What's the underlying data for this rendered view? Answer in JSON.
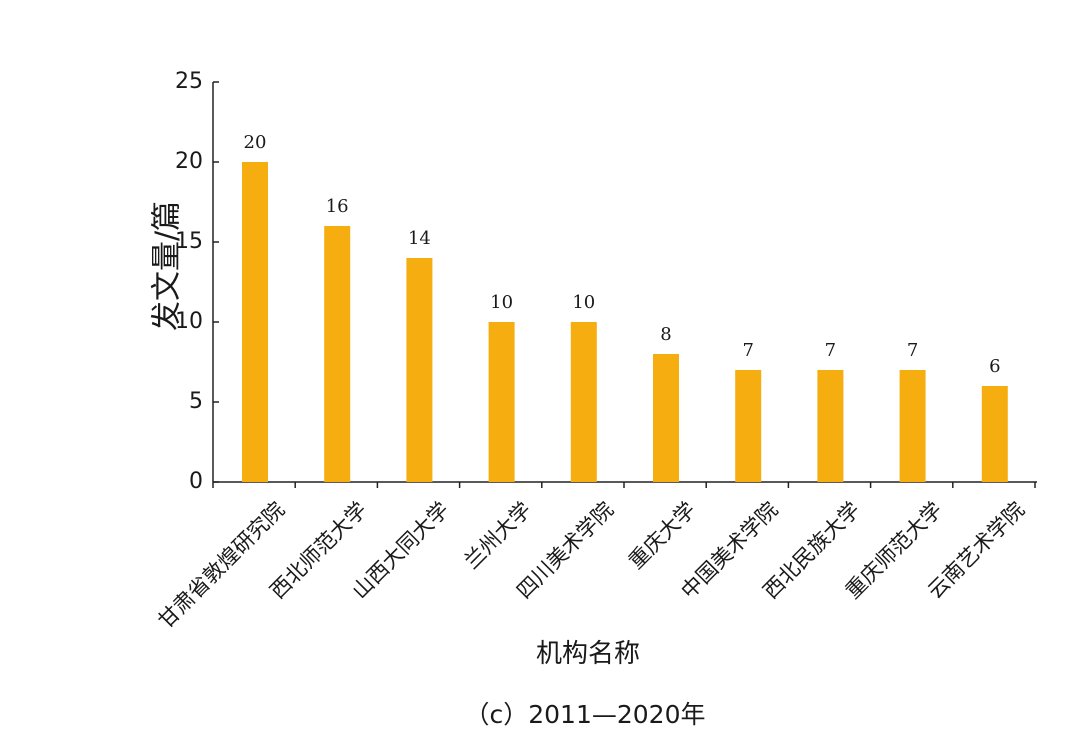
{
  "chart_data": {
    "type": "bar",
    "categories": [
      "甘肃省敦煌研究院",
      "西北师范大学",
      "山西大同大学",
      "兰州大学",
      "四川美术学院",
      "重庆大学",
      "中国美术学院",
      "西北民族大学",
      "重庆师范大学",
      "云南艺术学院"
    ],
    "values": [
      20,
      16,
      14,
      10,
      10,
      8,
      7,
      7,
      7,
      6
    ],
    "data_labels": [
      "20",
      "16",
      "14",
      "10",
      "10",
      "8",
      "7",
      "7",
      "7",
      "6"
    ],
    "xlabel": "机构名称",
    "ylabel": "发文量/篇",
    "ylim": [
      0,
      25
    ],
    "yticks": [
      "0",
      "5",
      "10",
      "15",
      "20",
      "25"
    ],
    "bar_color": "#F5AD0F",
    "grid": false,
    "legend": "none"
  },
  "caption": "（c）2011—2020年"
}
